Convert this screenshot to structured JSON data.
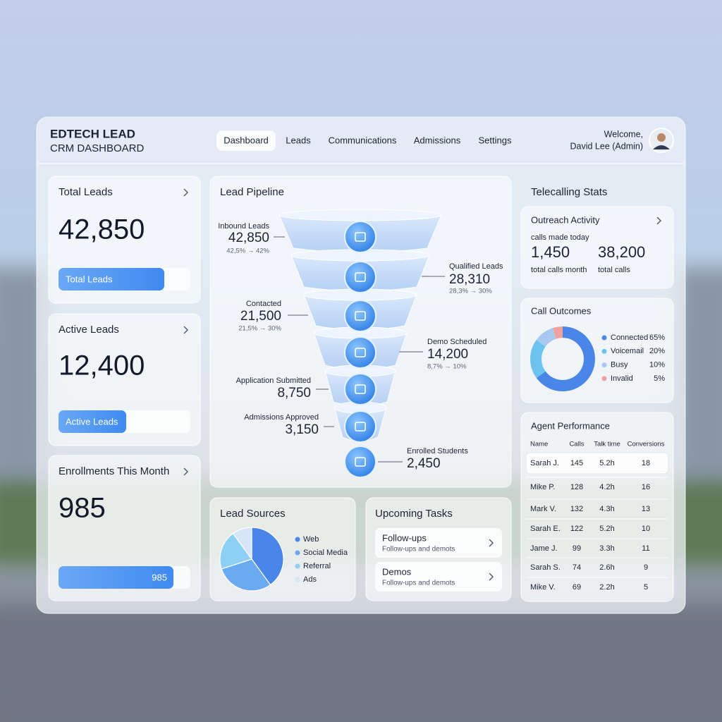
{
  "header": {
    "title": "EDTECH LEAD",
    "subtitle": "CRM DASHBOARD",
    "nav": [
      "Dashboard",
      "Leads",
      "Communications",
      "Admissions",
      "Settings"
    ],
    "welcome": "Welcome,",
    "user": "David Lee (Admin)"
  },
  "kpis": [
    {
      "title": "Total Leads",
      "value": "42,850",
      "bar_label": "Total Leads"
    },
    {
      "title": "Active Leads",
      "value": "12,400",
      "bar_label": "Active Leads"
    },
    {
      "title": "Enrollments This Month",
      "value": "985",
      "bar_label": "985"
    }
  ],
  "pipeline": {
    "title": "Lead Pipeline",
    "stages": [
      {
        "label": "Inbound Leads",
        "value": "42,850",
        "rate": "42,5% → 42%"
      },
      {
        "label": "Qualified Leads",
        "value": "28,310",
        "rate": "28,3% → 30%"
      },
      {
        "label": "Contacted",
        "value": "21,500",
        "rate": "21,5% → 30%"
      },
      {
        "label": "Demo Scheduled",
        "value": "14,200",
        "rate": "8,7% → 10%"
      },
      {
        "label": "Application Submitted",
        "value": "8,750"
      },
      {
        "label": "Admissions Approved",
        "value": "3,150"
      },
      {
        "label": "Enrolled Students",
        "value": "2,450"
      }
    ]
  },
  "lead_sources": {
    "title": "Lead Sources",
    "items": [
      {
        "name": "Web",
        "value": 40,
        "color": "#4a86e8"
      },
      {
        "name": "Social Media",
        "value": 30,
        "color": "#6aaaf0"
      },
      {
        "name": "Referral",
        "value": 20,
        "color": "#8fd0f5"
      },
      {
        "name": "Ads",
        "value": 10,
        "color": "#d6e6f8"
      }
    ]
  },
  "tasks": {
    "title": "Upcoming Tasks",
    "items": [
      {
        "title": "Follow-ups",
        "subtitle": "Follow-ups and demots"
      },
      {
        "title": "Demos",
        "subtitle": "Follow-ups and demots"
      }
    ]
  },
  "telecalling": {
    "title": "Telecalling Stats",
    "outreach": {
      "title": "Outreach Activity",
      "note": "calls made today",
      "stats": [
        {
          "value": "1,450",
          "label": "total calls month"
        },
        {
          "value": "38,200",
          "label": "total calls"
        }
      ]
    }
  },
  "call_outcomes": {
    "title": "Call Outcomes",
    "items": [
      {
        "name": "Connected",
        "value": 65,
        "label": "65%",
        "color": "#4a86e8"
      },
      {
        "name": "Voicemail",
        "value": 20,
        "label": "20%",
        "color": "#6cc4ee"
      },
      {
        "name": "Busy",
        "value": 10,
        "label": "10%",
        "color": "#a9c8f0"
      },
      {
        "name": "Invalid",
        "value": 5,
        "label": "5%",
        "color": "#f2a0a0"
      }
    ]
  },
  "agents": {
    "title": "Agent Performance",
    "columns": [
      "Name",
      "Calls",
      "Talk time",
      "Conversions"
    ],
    "rows": [
      [
        "Sarah J.",
        "145",
        "5.2h",
        "18"
      ],
      [
        "Mike P.",
        "128",
        "4.2h",
        "16"
      ],
      [
        "Mark V.",
        "132",
        "4.3h",
        "13"
      ],
      [
        "Sarah E.",
        "122",
        "5.2h",
        "10"
      ],
      [
        "Jame J.",
        "99",
        "3.3h",
        "11"
      ],
      [
        "Sarah S.",
        "74",
        "2.6h",
        "9"
      ],
      [
        "Mike V.",
        "69",
        "2.2h",
        "5"
      ]
    ]
  }
}
